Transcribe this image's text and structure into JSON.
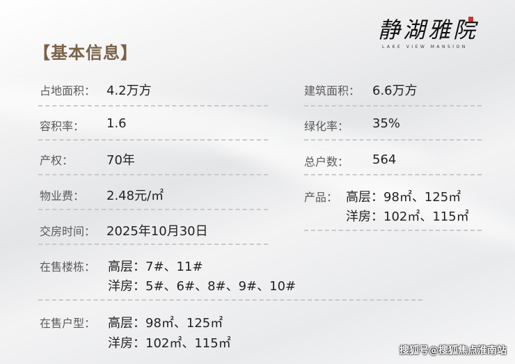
{
  "logo": {
    "name_cn": "静湖雅院",
    "name_en": "LAKE VIEW MANSION"
  },
  "section_title": "【基本信息】",
  "left": [
    {
      "label": "占地面积：",
      "value": "4.2万方"
    },
    {
      "label": "容积率：",
      "value": "1.6"
    },
    {
      "label": "产权：",
      "value": "70年"
    },
    {
      "label": "物业费：",
      "value": "2.48元/㎡"
    },
    {
      "label": "交房时间：",
      "value": "2025年10月30日"
    },
    {
      "label": "在售楼栋：",
      "lines": [
        "高层：7#、11#",
        "洋房：5#、6#、8#、9#、10#"
      ]
    },
    {
      "label": "在售户型：",
      "lines": [
        "高层：98㎡、125㎡",
        "洋房：102㎡、115㎡"
      ]
    }
  ],
  "right": [
    {
      "label": "建筑面积：",
      "value": "6.6万方"
    },
    {
      "label": "绿化率：",
      "value": "35%"
    },
    {
      "label": "总户数：",
      "value": "564"
    },
    {
      "label": "产品：",
      "lines": [
        "高层：98㎡、125㎡",
        "洋房：102㎡、115㎡"
      ]
    }
  ],
  "watermark": "搜狐号@搜狐焦点淮南站",
  "colors": {
    "title": "#7a6248",
    "label": "#5a5a5a",
    "value": "#222222"
  }
}
